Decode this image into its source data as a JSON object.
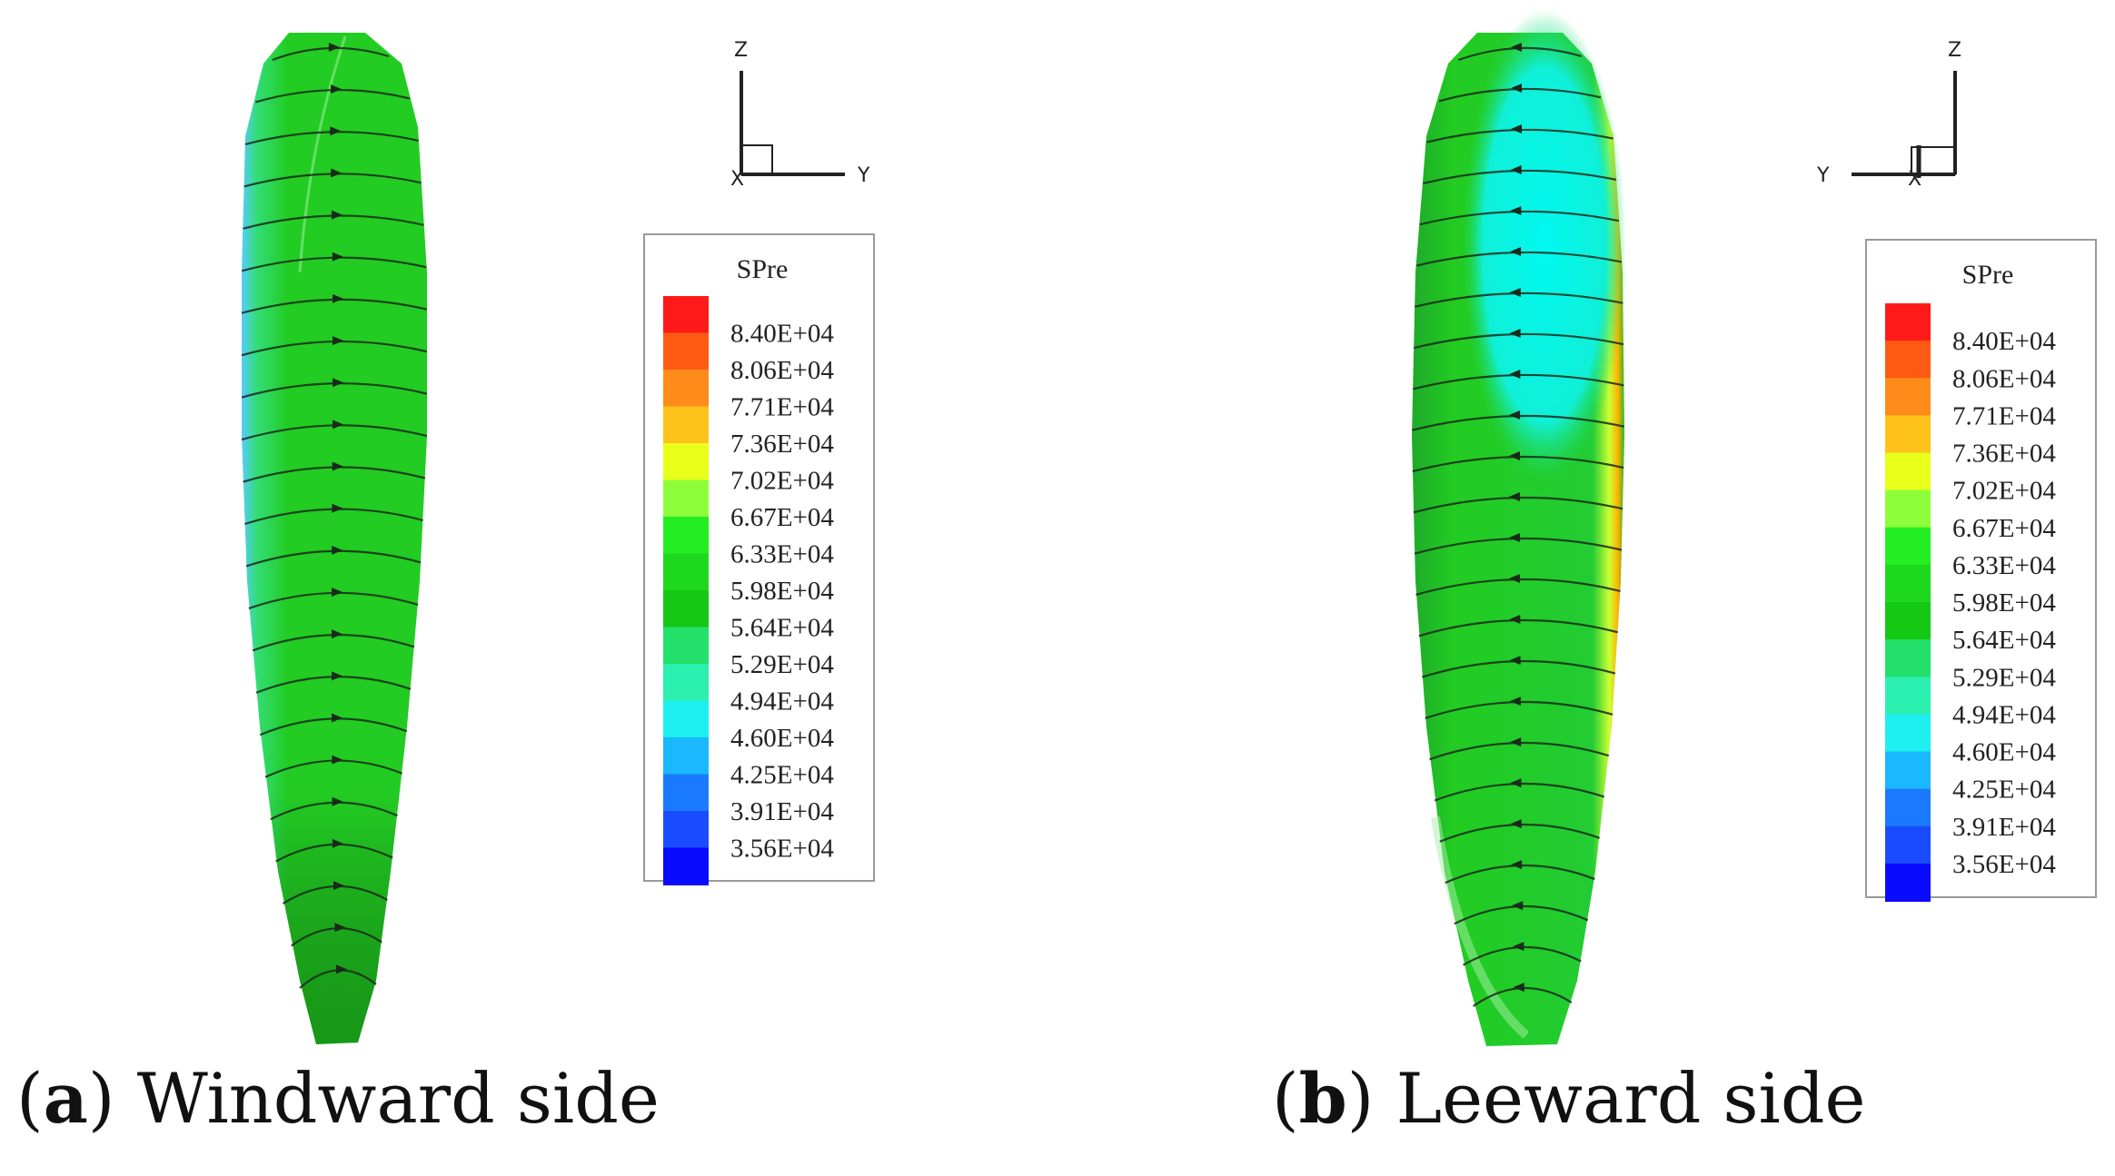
{
  "panels": [
    {
      "id": "a",
      "caption_letter": "a",
      "caption_text": "Windward side",
      "axis_labels": {
        "vertical": "Z",
        "horizontal": "Y",
        "out_of_plane": "X"
      },
      "surface_colors": {
        "main": "#22cc22",
        "edge": "#33dd55",
        "leading": "#55ccff",
        "tip": "#16a016"
      }
    },
    {
      "id": "b",
      "caption_letter": "b",
      "caption_text": "Leeward side",
      "axis_labels": {
        "vertical": "Z",
        "horizontal": "Y",
        "out_of_plane": "X"
      },
      "surface_colors": {
        "main": "#22cc22",
        "edge": "#1faa2a",
        "region": "#00f5f0",
        "trailing": "#ffb000"
      }
    }
  ],
  "legend": {
    "title": "SPre",
    "levels": [
      "8.40E+04",
      "8.06E+04",
      "7.71E+04",
      "7.36E+04",
      "7.02E+04",
      "6.67E+04",
      "6.33E+04",
      "5.98E+04",
      "5.64E+04",
      "5.29E+04",
      "4.94E+04",
      "4.60E+04",
      "4.25E+04",
      "3.91E+04",
      "3.56E+04"
    ],
    "colors": [
      "#ff1a1a",
      "#ff5a14",
      "#ff8c1a",
      "#ffc21a",
      "#e8ff1a",
      "#8cff3a",
      "#22ee22",
      "#1ed81e",
      "#14c814",
      "#22e06a",
      "#2cf0b0",
      "#1ef0f0",
      "#1ab8ff",
      "#1a7aff",
      "#1a4cff",
      "#0a0aff"
    ]
  }
}
